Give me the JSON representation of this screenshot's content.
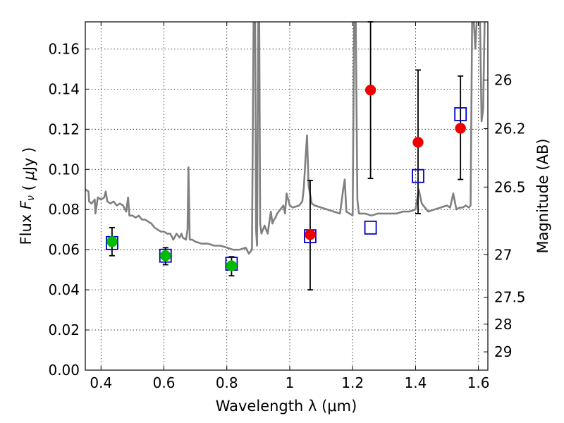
{
  "chart_data": {
    "type": "scatter",
    "xlabel": "Wavelength  λ (μm)",
    "ylabel": "Flux  F_ν  ( μJy )",
    "y2label": "Magnitude (AB)",
    "xlim": [
      0.35,
      1.63
    ],
    "ylim": [
      0.0,
      0.1735
    ],
    "x_ticks": [
      0.4,
      0.6,
      0.8,
      1.0,
      1.2,
      1.4,
      1.6
    ],
    "x_tick_labels": [
      "0.4",
      "0.6",
      "0.8",
      "1",
      "1.2",
      "1.4",
      "1.6"
    ],
    "y_ticks": [
      0.0,
      0.02,
      0.04,
      0.06,
      0.08,
      0.1,
      0.12,
      0.14,
      0.16
    ],
    "y_tick_labels": [
      "0.00",
      "0.02",
      "0.04",
      "0.06",
      "0.08",
      "0.10",
      "0.12",
      "0.14",
      "0.16"
    ],
    "y2_ticks": [
      {
        "label": "26",
        "flux": 0.1445
      },
      {
        "label": "26.2",
        "flux": 0.1203
      },
      {
        "label": "26.5",
        "flux": 0.0912
      },
      {
        "label": "27",
        "flux": 0.0575
      },
      {
        "label": "27.5",
        "flux": 0.0363
      },
      {
        "label": "28",
        "flux": 0.0229
      },
      {
        "label": "29",
        "flux": 0.0091
      }
    ],
    "grid": true,
    "series": [
      {
        "kind": "line",
        "color": "#808080",
        "x": [
          0.35,
          0.36,
          0.362,
          0.37,
          0.38,
          0.382,
          0.39,
          0.4,
          0.41,
          0.415,
          0.42,
          0.43,
          0.44,
          0.45,
          0.46,
          0.47,
          0.48,
          0.486,
          0.49,
          0.5,
          0.51,
          0.52,
          0.53,
          0.54,
          0.55,
          0.56,
          0.57,
          0.58,
          0.59,
          0.6,
          0.61,
          0.62,
          0.63,
          0.64,
          0.65,
          0.656,
          0.66,
          0.67,
          0.675,
          0.678,
          0.682,
          0.69,
          0.7,
          0.72,
          0.74,
          0.76,
          0.78,
          0.8,
          0.82,
          0.84,
          0.86,
          0.87,
          0.875,
          0.88,
          0.885,
          0.89,
          0.893,
          0.896,
          0.9,
          0.903,
          0.906,
          0.91,
          0.915,
          0.92,
          0.93,
          0.94,
          0.945,
          0.95,
          0.955,
          0.96,
          0.97,
          0.98,
          0.985,
          0.99,
          1.0,
          1.01,
          1.03,
          1.04,
          1.045,
          1.05,
          1.055,
          1.06,
          1.07,
          1.08,
          1.1,
          1.12,
          1.14,
          1.16,
          1.17,
          1.175,
          1.18,
          1.19,
          1.2,
          1.205,
          1.21,
          1.215,
          1.22,
          1.24,
          1.26,
          1.28,
          1.3,
          1.32,
          1.34,
          1.36,
          1.38,
          1.4,
          1.41,
          1.42,
          1.44,
          1.46,
          1.48,
          1.5,
          1.51,
          1.52,
          1.53,
          1.54,
          1.55,
          1.56,
          1.57,
          1.575,
          1.58,
          1.585,
          1.59,
          1.595,
          1.6,
          1.605,
          1.61,
          1.615,
          1.62
        ],
        "y": [
          0.09,
          0.089,
          0.084,
          0.083,
          0.085,
          0.078,
          0.086,
          0.085,
          0.086,
          0.089,
          0.084,
          0.083,
          0.084,
          0.082,
          0.083,
          0.082,
          0.079,
          0.086,
          0.077,
          0.077,
          0.076,
          0.077,
          0.075,
          0.075,
          0.074,
          0.073,
          0.071,
          0.07,
          0.069,
          0.069,
          0.068,
          0.068,
          0.065,
          0.068,
          0.066,
          0.068,
          0.066,
          0.065,
          0.07,
          0.101,
          0.065,
          0.065,
          0.064,
          0.063,
          0.063,
          0.062,
          0.062,
          0.061,
          0.06,
          0.06,
          0.061,
          0.058,
          0.059,
          0.06,
          0.175,
          0.175,
          0.07,
          0.062,
          0.175,
          0.175,
          0.073,
          0.068,
          0.07,
          0.072,
          0.068,
          0.079,
          0.073,
          0.075,
          0.076,
          0.078,
          0.08,
          0.082,
          0.078,
          0.088,
          0.082,
          0.081,
          0.082,
          0.084,
          0.091,
          0.105,
          0.117,
          0.092,
          0.083,
          0.082,
          0.081,
          0.08,
          0.079,
          0.078,
          0.09,
          0.095,
          0.079,
          0.078,
          0.077,
          0.175,
          0.175,
          0.085,
          0.078,
          0.078,
          0.077,
          0.078,
          0.078,
          0.078,
          0.078,
          0.079,
          0.079,
          0.08,
          0.09,
          0.083,
          0.079,
          0.08,
          0.081,
          0.082,
          0.081,
          0.088,
          0.08,
          0.081,
          0.081,
          0.082,
          0.081,
          0.082,
          0.175,
          0.175,
          0.16,
          0.175,
          0.175,
          0.175,
          0.124,
          0.13,
          0.175
        ]
      },
      {
        "kind": "scatter",
        "marker": "open-square",
        "color": "#0000cc",
        "x": [
          0.435,
          0.605,
          0.815,
          1.065,
          1.257,
          1.408,
          1.543
        ],
        "y": [
          0.0633,
          0.057,
          0.053,
          0.0667,
          0.071,
          0.0967,
          0.1275
        ]
      },
      {
        "kind": "scatter",
        "marker": "filled-circle",
        "color": "#00bb00",
        "x": [
          0.435,
          0.605,
          0.815
        ],
        "y": [
          0.064,
          0.057,
          0.052
        ],
        "yerr_low": [
          0.057,
          0.0525,
          0.047
        ],
        "yerr_high": [
          0.071,
          0.061,
          0.0565
        ]
      },
      {
        "kind": "scatter",
        "marker": "filled-circle",
        "color": "#ee0000",
        "x": [
          1.065,
          1.257,
          1.408,
          1.543
        ],
        "y": [
          0.0675,
          0.1395,
          0.1135,
          0.1205
        ],
        "yerr_low": [
          0.04,
          0.0955,
          0.078,
          0.095
        ],
        "yerr_high": [
          0.0945,
          0.1735,
          0.1495,
          0.1465
        ]
      }
    ]
  }
}
